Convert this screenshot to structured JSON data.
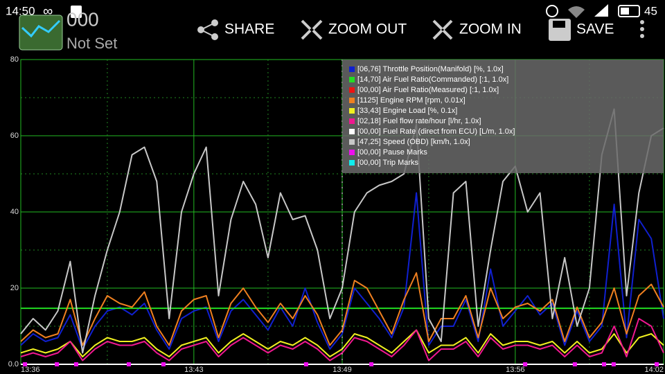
{
  "status_bar": {
    "time": "14:50",
    "battery": "45"
  },
  "app": {
    "title": "000",
    "subtitle": "Not Set"
  },
  "toolbar": [
    "SHARE",
    "ZOOM OUT",
    "ZOOM IN",
    "SAVE"
  ],
  "chart_data": {
    "type": "line",
    "xlim": [
      816,
      842
    ],
    "xticks": [
      {
        "value": 816,
        "label": "13:36"
      },
      {
        "value": 823,
        "label": "13:43"
      },
      {
        "value": 829,
        "label": "13:49"
      },
      {
        "value": 836,
        "label": "13:56"
      },
      {
        "value": 842,
        "label": "14:02"
      }
    ],
    "ylim": [
      0,
      80
    ],
    "yticks": [
      {
        "value": 0,
        "label": "0.0"
      },
      20,
      40,
      60,
      80
    ],
    "grid": true,
    "x": [
      816,
      816.5,
      817,
      817.5,
      818,
      818.5,
      819,
      819.5,
      820,
      820.5,
      821,
      821.5,
      822,
      822.5,
      823,
      823.5,
      824,
      824.5,
      825,
      825.5,
      826,
      826.5,
      827,
      827.5,
      828,
      828.5,
      829,
      829.5,
      830,
      830.5,
      831,
      831.5,
      832,
      832.5,
      833,
      833.5,
      834,
      834.5,
      835,
      835.5,
      836,
      836.5,
      837,
      837.5,
      838,
      838.5,
      839,
      839.5,
      840,
      840.5,
      841,
      841.5,
      842
    ],
    "series": [
      {
        "name": "[06,76] Throttle Position(Manifold) [%, 1.0x]",
        "color": "#1020d0",
        "values": [
          5,
          8,
          6,
          7,
          13,
          4,
          10,
          14,
          15,
          13,
          16,
          9,
          4,
          12,
          14,
          15,
          6,
          14,
          17,
          13,
          9,
          15,
          10,
          20,
          11,
          4,
          8,
          20,
          16,
          12,
          7,
          15,
          45,
          5,
          10,
          10,
          17,
          6,
          25,
          10,
          14,
          18,
          13,
          16,
          5,
          14,
          6,
          10,
          42,
          7,
          38,
          33,
          12
        ]
      },
      {
        "name": "[14,70] Air Fuel Ratio(Commanded) [:1, 1.0x]",
        "color": "#22dd22",
        "values": [
          14.7,
          14.7,
          14.7,
          14.7,
          14.7,
          14.7,
          14.7,
          14.7,
          14.7,
          14.7,
          14.7,
          14.7,
          14.7,
          14.7,
          14.7,
          14.7,
          14.7,
          14.7,
          14.7,
          14.7,
          14.7,
          14.7,
          14.7,
          14.7,
          14.7,
          14.7,
          14.7,
          14.7,
          14.7,
          14.7,
          14.7,
          14.7,
          14.7,
          14.7,
          14.7,
          14.7,
          14.7,
          14.7,
          14.7,
          14.7,
          14.7,
          14.7,
          14.7,
          14.7,
          14.7,
          14.7,
          14.7,
          14.7,
          14.7,
          14.7,
          14.7,
          14.7,
          14.7
        ]
      },
      {
        "name": "[00,00] Air Fuel Ratio(Measured) [:1, 1.0x]",
        "color": "#ee1111",
        "values": [
          0,
          0,
          0,
          0,
          0,
          0,
          0,
          0,
          0,
          0,
          0,
          0,
          0,
          0,
          0,
          0,
          0,
          0,
          0,
          0,
          0,
          0,
          0,
          0,
          0,
          0,
          0,
          0,
          0,
          0,
          0,
          0,
          0,
          0,
          0,
          0,
          0,
          0,
          0,
          0,
          0,
          0,
          0,
          0,
          0,
          0,
          0,
          0,
          0,
          0,
          0,
          0,
          0
        ]
      },
      {
        "name": "[1125] Engine RPM [rpm, 0.01x]",
        "color": "#f08020",
        "values": [
          6,
          9,
          7,
          8,
          17,
          5,
          12,
          18,
          16,
          15,
          19,
          10,
          5,
          14,
          17,
          18,
          7,
          16,
          20,
          15,
          11,
          16,
          12,
          18,
          13,
          5,
          9,
          22,
          20,
          14,
          8,
          17,
          24,
          6,
          12,
          12,
          18,
          7,
          20,
          12,
          15,
          16,
          14,
          17,
          6,
          15,
          7,
          11,
          20,
          8,
          18,
          21,
          15
        ]
      },
      {
        "name": "[33,43] Engine Load [%, 0.1x]",
        "color": "#f0f020",
        "values": [
          3,
          4,
          3,
          4,
          6,
          2,
          5,
          7,
          6,
          6,
          7,
          4,
          2,
          5,
          6,
          7,
          3,
          6,
          8,
          6,
          4,
          6,
          5,
          7,
          5,
          2,
          4,
          8,
          7,
          5,
          3,
          6,
          9,
          3,
          5,
          5,
          7,
          3,
          8,
          5,
          6,
          6,
          5,
          6,
          3,
          6,
          3,
          4,
          8,
          3,
          7,
          8,
          5
        ]
      },
      {
        "name": "[02,18] Fuel flow rate/hour [l/hr, 1.0x]",
        "color": "#f01890",
        "values": [
          2,
          3,
          2,
          3,
          6,
          1,
          4,
          6,
          5,
          5,
          6,
          3,
          1,
          4,
          5,
          6,
          2,
          5,
          7,
          5,
          3,
          5,
          4,
          6,
          4,
          1,
          3,
          7,
          6,
          4,
          2,
          5,
          9,
          1,
          4,
          4,
          6,
          2,
          7,
          4,
          5,
          5,
          4,
          5,
          2,
          5,
          2,
          3,
          10,
          2,
          12,
          10,
          3
        ]
      },
      {
        "name": "[00,00] Fuel Rate (direct from ECU) [L/m, 1.0x]",
        "color": "#ffffff",
        "values": [
          0,
          0,
          0,
          0,
          0,
          0,
          0,
          0,
          0,
          0,
          0,
          0,
          0,
          0,
          0,
          0,
          0,
          0,
          0,
          0,
          0,
          0,
          0,
          0,
          0,
          0,
          0,
          0,
          0,
          0,
          0,
          0,
          0,
          0,
          0,
          0,
          0,
          0,
          0,
          0,
          0,
          0,
          0,
          0,
          0,
          0,
          0,
          0,
          0,
          0,
          0,
          0,
          0
        ]
      },
      {
        "name": "[47,25] Speed (OBD) [km/h, 1.0x]",
        "color": "#c8c8c8",
        "values": [
          8,
          12,
          9,
          14,
          27,
          3,
          18,
          30,
          40,
          55,
          57,
          48,
          12,
          40,
          50,
          57,
          18,
          38,
          48,
          42,
          28,
          45,
          38,
          39,
          30,
          12,
          20,
          40,
          45,
          47,
          48,
          50,
          63,
          12,
          6,
          45,
          48,
          10,
          30,
          48,
          52,
          40,
          45,
          12,
          28,
          10,
          20,
          55,
          67,
          18,
          45,
          60,
          62
        ]
      },
      {
        "name": "[00,00] Pause Marks",
        "color": "#ee10ee",
        "marks": true,
        "x": [
          816.17,
          817.46,
          818.24,
          820.37,
          821.77,
          827.54,
          830.18,
          836.4,
          838.41,
          839.59,
          839.98,
          841.72
        ],
        "values": [
          0,
          0,
          0,
          0,
          0,
          0,
          0,
          0,
          0,
          0,
          0,
          0
        ]
      },
      {
        "name": "[00,00] Trip Marks",
        "color": "#10eeee",
        "marks": true,
        "x": [],
        "values": []
      }
    ]
  }
}
